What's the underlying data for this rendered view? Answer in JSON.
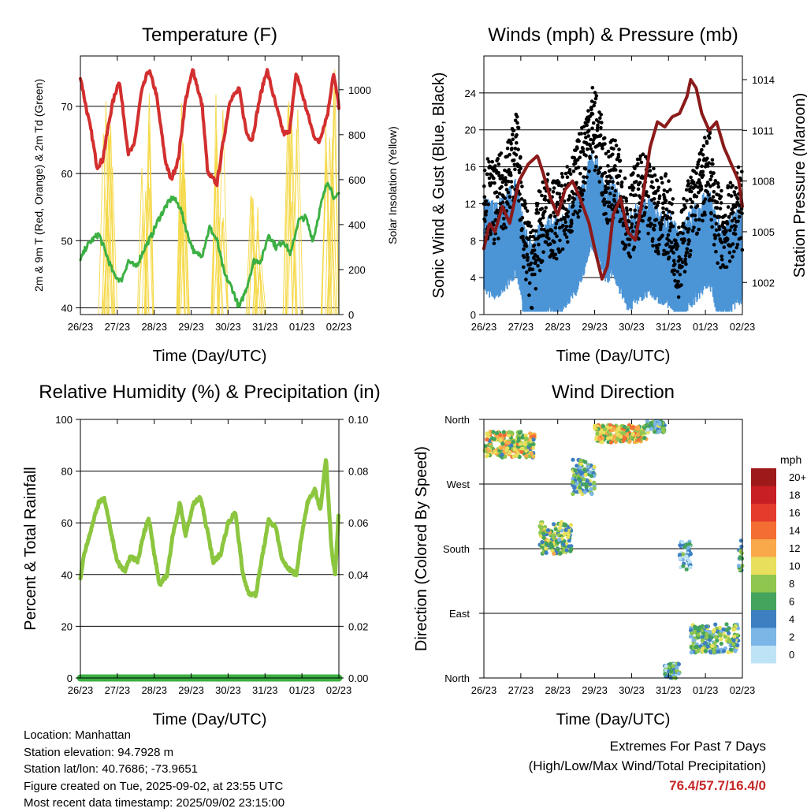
{
  "x_tick_labels": [
    "26/23",
    "27/23",
    "28/23",
    "29/23",
    "30/23",
    "31/23",
    "01/23",
    "02/23"
  ],
  "x_axis_label": "Time (Day/UTC)",
  "colors": {
    "temperature": "#d32f2f",
    "dewpoint": "#3cb043",
    "insolation": "#f5d94a",
    "gust": "#000000",
    "wind": "#4b94d6",
    "pressure": "#8b1a1a",
    "humidity": "#8cc63f",
    "precip": "#3cb043"
  },
  "chart_data": [
    {
      "id": "temperature",
      "type": "line",
      "title": "Temperature (F)",
      "xlabel": "Time (Day/UTC)",
      "ylabel": "2m & 9m T (Red, Orange) & 2m Td (Green)",
      "ylabel_right": "Solar Insolation (Yellow)",
      "ylim": [
        39,
        77.5
      ],
      "yticks": [
        40,
        50,
        60,
        70
      ],
      "ylim_right": [
        0,
        1150
      ],
      "yticks_right": [
        0,
        200,
        400,
        600,
        800,
        1000
      ],
      "x_days": [
        0,
        7
      ],
      "series": [
        {
          "color": "temperature",
          "x": [
            0,
            0.15,
            0.3,
            0.45,
            0.6,
            0.85,
            1.05,
            1.3,
            1.45,
            1.65,
            1.85,
            2.05,
            2.3,
            2.45,
            2.65,
            2.85,
            3.05,
            3.3,
            3.45,
            3.7,
            3.85,
            4.05,
            4.3,
            4.5,
            4.65,
            4.85,
            5.05,
            5.3,
            5.5,
            5.65,
            5.85,
            6.05,
            6.3,
            6.45,
            6.7,
            6.85,
            7
          ],
          "y": [
            74.5,
            70,
            66,
            61,
            62,
            70,
            74,
            63,
            64,
            72,
            75.5,
            72,
            62,
            59,
            62,
            71,
            75.5,
            70,
            60,
            58.5,
            64,
            71,
            72.5,
            66,
            65,
            71,
            75.5,
            70,
            66,
            66,
            75,
            71,
            66,
            64.5,
            69,
            75,
            70
          ]
        },
        {
          "color": "dewpoint",
          "x": [
            0,
            0.15,
            0.3,
            0.5,
            0.7,
            0.9,
            1.1,
            1.3,
            1.5,
            1.75,
            1.95,
            2.1,
            2.3,
            2.5,
            2.7,
            2.9,
            3.1,
            3.3,
            3.5,
            3.7,
            3.9,
            4.1,
            4.3,
            4.5,
            4.7,
            4.9,
            5.1,
            5.3,
            5.5,
            5.7,
            5.9,
            6.1,
            6.3,
            6.5,
            6.7,
            6.9,
            7
          ],
          "y": [
            47,
            49,
            50,
            51,
            48,
            45,
            44,
            47,
            46,
            49,
            51,
            53,
            55,
            56.5,
            55,
            51,
            48,
            48,
            52,
            50,
            45,
            43,
            40,
            43,
            47,
            47,
            51,
            49,
            50,
            48,
            53,
            53.5,
            50,
            55,
            59,
            56,
            57
          ]
        }
      ],
      "insolation_peaks": [
        {
          "day": 0.75,
          "value": 1000
        },
        {
          "day": 1.75,
          "value": 1040
        },
        {
          "day": 2.75,
          "value": 1000
        },
        {
          "day": 3.75,
          "value": 980
        },
        {
          "day": 4.75,
          "value": 560
        },
        {
          "day": 5.75,
          "value": 1000
        },
        {
          "day": 6.75,
          "value": 1100
        }
      ]
    },
    {
      "id": "winds",
      "type": "scatter",
      "title": "Winds (mph) & Pressure (mb)",
      "xlabel": "Time (Day/UTC)",
      "ylabel": "Sonic Wind & Gust (Blue, Black)",
      "ylabel_right": "Station Pressure (Maroon)",
      "ylim": [
        0,
        28
      ],
      "yticks": [
        0,
        4,
        8,
        12,
        16,
        20,
        24
      ],
      "ylim_right": [
        1000.1,
        1015.4
      ],
      "yticks_right": [
        1002,
        1005,
        1008,
        1011,
        1014
      ],
      "x_days": [
        0,
        7
      ],
      "wind_envelope": {
        "x": [
          0,
          0.3,
          0.6,
          0.9,
          1.1,
          1.3,
          1.5,
          1.7,
          1.9,
          2.1,
          2.3,
          2.5,
          2.7,
          2.9,
          3.1,
          3.3,
          3.5,
          3.7,
          3.9,
          4.1,
          4.3,
          4.5,
          4.7,
          4.9,
          5.1,
          5.3,
          5.5,
          5.7,
          5.9,
          6.1,
          6.3,
          6.5,
          6.7,
          6.9,
          7
        ],
        "mean": [
          7,
          6.5,
          7.5,
          9,
          4,
          2,
          4,
          5,
          4.5,
          5,
          6,
          7,
          9,
          12,
          11,
          8,
          9,
          7,
          5,
          6,
          6.5,
          7,
          6,
          6,
          5,
          3,
          5,
          6,
          7,
          8,
          5,
          4,
          5,
          6,
          6
        ]
      },
      "gust_envelope": {
        "x": [
          0,
          0.3,
          0.6,
          0.9,
          1.1,
          1.3,
          1.5,
          1.7,
          1.9,
          2.1,
          2.3,
          2.5,
          2.7,
          2.9,
          3.1,
          3.3,
          3.5,
          3.7,
          3.9,
          4.1,
          4.3,
          4.5,
          4.7,
          4.9,
          5.1,
          5.3,
          5.5,
          5.7,
          5.9,
          6.1,
          6.3,
          6.5,
          6.7,
          6.9,
          7
        ],
        "mean": [
          13,
          12,
          14,
          18,
          8,
          5,
          9,
          11,
          10,
          11,
          12,
          14,
          17,
          21,
          19,
          14,
          15,
          13,
          10,
          12,
          13,
          12,
          11,
          11,
          9,
          6,
          10,
          12,
          14,
          16,
          10,
          9,
          10,
          12,
          11
        ]
      },
      "pressure": {
        "x": [
          0,
          0.15,
          0.3,
          0.5,
          0.7,
          0.95,
          1.2,
          1.45,
          1.6,
          1.8,
          2.0,
          2.2,
          2.4,
          2.6,
          2.85,
          3.0,
          3.2,
          3.35,
          3.5,
          3.7,
          3.9,
          4.1,
          4.3,
          4.5,
          4.7,
          4.9,
          5.1,
          5.3,
          5.5,
          5.6,
          5.75,
          5.9,
          6.1,
          6.3,
          6.5,
          6.7,
          6.9,
          7
        ],
        "y": [
          1004,
          1005.5,
          1005,
          1006.5,
          1005.5,
          1008,
          1009,
          1009.5,
          1008.5,
          1007,
          1006,
          1007.5,
          1008,
          1007,
          1005.5,
          1004,
          1002.2,
          1003,
          1006,
          1007,
          1005,
          1004.5,
          1007,
          1010,
          1011.5,
          1011.2,
          1011.8,
          1012,
          1013,
          1014,
          1013.5,
          1012,
          1011,
          1011.5,
          1010,
          1009,
          1008,
          1006.5
        ]
      }
    },
    {
      "id": "humidity",
      "type": "line",
      "title": "Relative Humidity (%) & Precipitation (in)",
      "xlabel": "Time (Day/UTC)",
      "ylabel": "Percent & Total Rainfall",
      "ylim": [
        0,
        100
      ],
      "yticks": [
        0,
        20,
        40,
        60,
        80,
        100
      ],
      "ylim_right": [
        0,
        0.1
      ],
      "yticks_right": [
        "0.00",
        "0.02",
        "0.04",
        "0.06",
        "0.08",
        "0.10"
      ],
      "x_days": [
        0,
        7
      ],
      "series": [
        {
          "color": "humidity",
          "x": [
            0,
            0.1,
            0.3,
            0.5,
            0.65,
            0.85,
            1.0,
            1.2,
            1.35,
            1.55,
            1.7,
            1.85,
            2.0,
            2.15,
            2.35,
            2.5,
            2.7,
            2.85,
            3.05,
            3.25,
            3.45,
            3.6,
            3.8,
            4.0,
            4.2,
            4.4,
            4.55,
            4.75,
            4.9,
            5.1,
            5.3,
            5.45,
            5.65,
            5.85,
            6.0,
            6.15,
            6.35,
            6.5,
            6.65,
            6.8,
            6.9,
            7
          ],
          "y": [
            38,
            48,
            58,
            68,
            69,
            55,
            45,
            41,
            47,
            45,
            55,
            62,
            48,
            36,
            40,
            55,
            68,
            55,
            67,
            70,
            56,
            45,
            48,
            60,
            64,
            40,
            33,
            32,
            45,
            61,
            58,
            46,
            42,
            40,
            56,
            68,
            73,
            65,
            85,
            50,
            40,
            65
          ]
        },
        {
          "color": "precip",
          "x": [
            0,
            7
          ],
          "y": [
            0,
            0
          ]
        }
      ]
    },
    {
      "id": "direction",
      "type": "scatter",
      "title": "Wind Direction",
      "xlabel": "Time (Day/UTC)",
      "ylabel": "Direction (Colored By Speed)",
      "yticks": [
        "North",
        "East",
        "South",
        "West",
        "North"
      ],
      "ylim": [
        0,
        360
      ],
      "x_days": [
        0,
        7
      ],
      "segments": [
        {
          "x0": 0.0,
          "x1": 1.4,
          "dir": 325,
          "spread": 18,
          "speed": 9
        },
        {
          "x0": 1.5,
          "x1": 2.4,
          "dir": 195,
          "spread": 22,
          "speed": 7
        },
        {
          "x0": 2.4,
          "x1": 3.0,
          "dir": 280,
          "spread": 25,
          "speed": 6
        },
        {
          "x0": 3.0,
          "x1": 4.4,
          "dir": 340,
          "spread": 12,
          "speed": 10
        },
        {
          "x0": 4.4,
          "x1": 4.9,
          "dir": 350,
          "spread": 8,
          "speed": 5
        },
        {
          "x0": 4.9,
          "x1": 5.3,
          "dir": 10,
          "spread": 10,
          "speed": 4
        },
        {
          "x0": 5.3,
          "x1": 5.6,
          "dir": 170,
          "spread": 20,
          "speed": 3
        },
        {
          "x0": 5.6,
          "x1": 6.9,
          "dir": 55,
          "spread": 20,
          "speed": 6
        },
        {
          "x0": 6.9,
          "x1": 7.0,
          "dir": 170,
          "spread": 25,
          "speed": 5
        }
      ],
      "legend": {
        "unit": "mph",
        "labels": [
          "20+",
          "18",
          "16",
          "14",
          "12",
          "10",
          "8",
          "6",
          "4",
          "2",
          "0"
        ],
        "colors": [
          "#9e1a1a",
          "#c81f24",
          "#e33b2c",
          "#f46d32",
          "#f9a84a",
          "#e8e05c",
          "#8fc64f",
          "#44a35c",
          "#3d7fc1",
          "#7bb6e6",
          "#bfe3f6"
        ]
      }
    }
  ],
  "info": {
    "location": "Location: Manhattan",
    "elevation": "Station elevation: 94.7928 m",
    "latlon": "Station lat/lon: 40.7686; -73.9651",
    "created": "Figure created on Tue, 2025-09-02, at 23:55 UTC",
    "recent": "Most recent data timestamp: 2025/09/02 23:15:00"
  },
  "extremes": {
    "title": "Extremes For Past 7 Days",
    "subtitle": "(High/Low/Max Wind/Total Precipitation)",
    "values": "76.4/57.7/16.4/0"
  }
}
